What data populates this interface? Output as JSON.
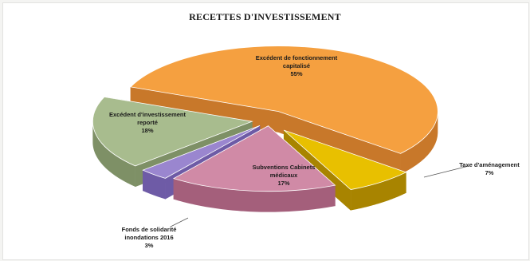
{
  "chart_data": {
    "type": "pie",
    "title": "RECETTES D'INVESTISSEMENT",
    "slices": [
      {
        "label_lines": [
          "Excédent de fonctionnement",
          "capitalisé"
        ],
        "pct_label": "55%",
        "value": 55,
        "color": "#f5a040",
        "side": "#c8782a"
      },
      {
        "label_lines": [
          "Taxe d'aménagement"
        ],
        "pct_label": "7%",
        "value": 7,
        "color": "#e8c000",
        "side": "#a88400"
      },
      {
        "label_lines": [
          "Subventions Cabinets",
          "médicaux"
        ],
        "pct_label": "17%",
        "value": 17,
        "color": "#d08aa6",
        "side": "#a45f7b"
      },
      {
        "label_lines": [
          "Fonds de solidarité",
          "inondations 2016"
        ],
        "pct_label": "3%",
        "value": 3,
        "color": "#9a86cf",
        "side": "#6e5ba6"
      },
      {
        "label_lines": [
          "Excédent d'investissement",
          "reporté"
        ],
        "pct_label": "18%",
        "value": 18,
        "color": "#a8bc8e",
        "side": "#7e9066"
      }
    ],
    "legend": "none",
    "data_labels": "category-and-percent"
  }
}
